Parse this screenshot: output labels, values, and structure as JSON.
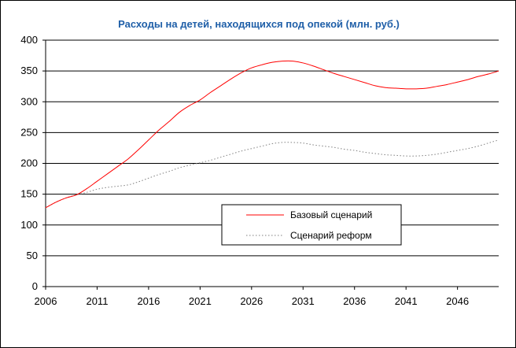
{
  "chart_data": {
    "type": "line",
    "title": "Расходы на детей, находящихся под опекой (млн. руб.)",
    "xlabel": "",
    "ylabel": "",
    "xlim": [
      2006,
      2050
    ],
    "ylim": [
      0,
      400
    ],
    "x_ticks": [
      2006,
      2011,
      2016,
      2021,
      2026,
      2031,
      2036,
      2041,
      2046
    ],
    "y_ticks": [
      0,
      50,
      100,
      150,
      200,
      250,
      300,
      350,
      400
    ],
    "grid": "horizontal",
    "legend_position": "center-right",
    "series": [
      {
        "name": "Базовый сценарий",
        "color": "#ff0000",
        "style": "solid",
        "x": [
          2006,
          2007,
          2008,
          2009,
          2010,
          2011,
          2012,
          2013,
          2014,
          2015,
          2016,
          2017,
          2018,
          2019,
          2020,
          2021,
          2022,
          2023,
          2024,
          2025,
          2026,
          2027,
          2028,
          2029,
          2030,
          2031,
          2032,
          2033,
          2034,
          2035,
          2036,
          2037,
          2038,
          2039,
          2040,
          2041,
          2042,
          2043,
          2044,
          2045,
          2046,
          2047,
          2048,
          2049,
          2050
        ],
        "values": [
          128,
          137,
          144,
          149,
          159,
          171,
          183,
          195,
          207,
          222,
          238,
          254,
          268,
          283,
          294,
          303,
          315,
          326,
          337,
          347,
          355,
          360,
          364,
          366,
          366,
          363,
          358,
          352,
          346,
          341,
          336,
          331,
          326,
          323,
          322,
          321,
          321,
          322,
          325,
          328,
          332,
          336,
          341,
          345,
          350
        ]
      },
      {
        "name": "Сценарий реформ",
        "color": "#808080",
        "style": "dotted",
        "x": [
          2006,
          2007,
          2008,
          2009,
          2010,
          2011,
          2012,
          2013,
          2014,
          2015,
          2016,
          2017,
          2018,
          2019,
          2020,
          2021,
          2022,
          2023,
          2024,
          2025,
          2026,
          2027,
          2028,
          2029,
          2030,
          2031,
          2032,
          2033,
          2034,
          2035,
          2036,
          2037,
          2038,
          2039,
          2040,
          2041,
          2042,
          2043,
          2044,
          2045,
          2046,
          2047,
          2048,
          2049,
          2050
        ],
        "values": [
          128,
          137,
          144,
          149,
          153,
          158,
          161,
          163,
          165,
          170,
          176,
          182,
          187,
          193,
          197,
          201,
          205,
          210,
          215,
          220,
          224,
          228,
          232,
          234,
          234,
          233,
          230,
          228,
          226,
          223,
          221,
          218,
          216,
          214,
          213,
          212,
          212,
          213,
          215,
          218,
          221,
          224,
          228,
          233,
          238
        ]
      }
    ]
  }
}
